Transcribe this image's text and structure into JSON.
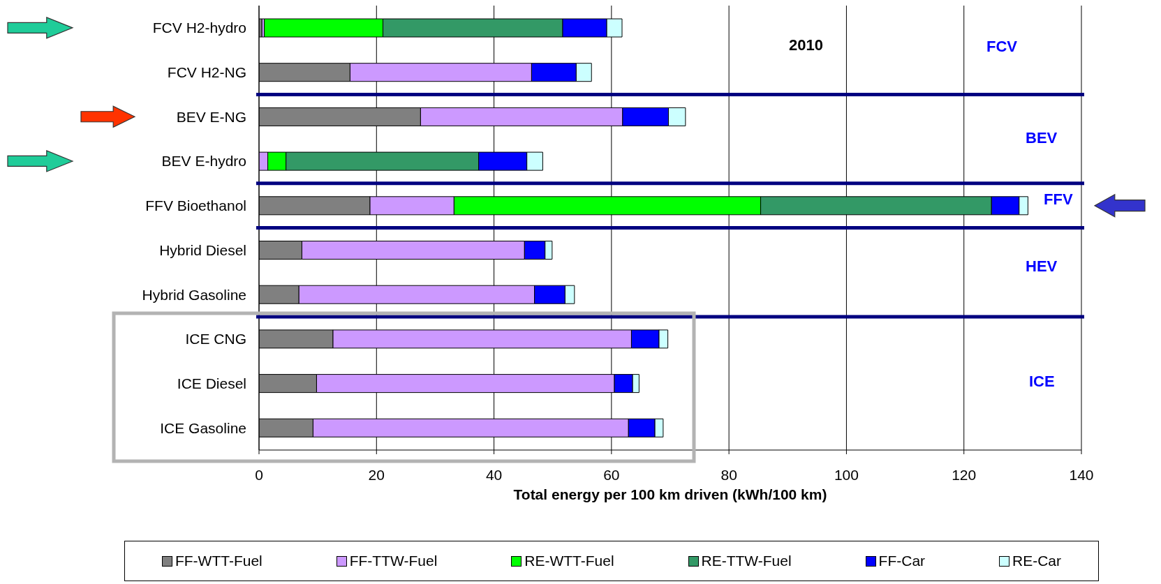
{
  "chart_data": {
    "type": "bar",
    "orientation": "horizontal",
    "stacked": true,
    "xlabel": "Total energy per 100 km driven (kWh/100 km)",
    "categories": [
      "FCV H2-hydro",
      "FCV H2-NG",
      "BEV E-NG",
      "BEV E-hydro",
      "FFV Bioethanol",
      "Hybrid Diesel",
      "Hybrid Gasoline",
      "ICE CNG",
      "ICE Diesel",
      "ICE Gasoline"
    ],
    "series": [
      {
        "name": "FF-WTT-Fuel",
        "color": "#808080",
        "values": [
          0.5,
          15.5,
          27.5,
          null,
          18.9,
          7.3,
          6.8,
          12.6,
          9.8,
          9.2
        ]
      },
      {
        "name": "FF-TTW-Fuel",
        "color": "#cc99ff",
        "values": [
          0.4,
          30.9,
          34.4,
          1.5,
          14.3,
          37.9,
          40.1,
          50.8,
          50.7,
          53.7
        ]
      },
      {
        "name": "RE-WTT-Fuel",
        "color": "#00ff00",
        "values": [
          20.2,
          null,
          null,
          3.1,
          52.2,
          null,
          null,
          null,
          null,
          null
        ]
      },
      {
        "name": "RE-TTW-Fuel",
        "color": "#339966",
        "values": [
          30.6,
          null,
          null,
          32.8,
          39.3,
          null,
          null,
          null,
          null,
          null
        ]
      },
      {
        "name": "FF-Car",
        "color": "#0000ff",
        "values": [
          7.5,
          7.6,
          7.8,
          8.2,
          4.7,
          3.5,
          5.2,
          4.7,
          3.1,
          4.5
        ]
      },
      {
        "name": "RE-Car",
        "color": "#ccffff",
        "values": [
          2.6,
          2.6,
          2.9,
          2.7,
          1.5,
          1.2,
          1.6,
          1.5,
          1.1,
          1.4
        ]
      }
    ],
    "xlim": [
      0,
      140
    ],
    "xticks": [
      0,
      20,
      40,
      60,
      80,
      100,
      120,
      140
    ],
    "grid": "x",
    "legend": "bottom",
    "annotations": [
      "2010",
      "FCV",
      "BEV",
      "FFV",
      "HEV",
      "ICE"
    ],
    "ref_lines": [
      {
        "axis": "y",
        "value": "FCV H2-NG",
        "color": "#000080"
      },
      {
        "axis": "y",
        "value": "BEV E-hydro",
        "color": "#000080"
      },
      {
        "axis": "y",
        "value": "FFV Bioethanol",
        "color": "#000080"
      },
      {
        "axis": "y",
        "value": "Hybrid Gasoline",
        "color": "#000080"
      }
    ]
  }
}
